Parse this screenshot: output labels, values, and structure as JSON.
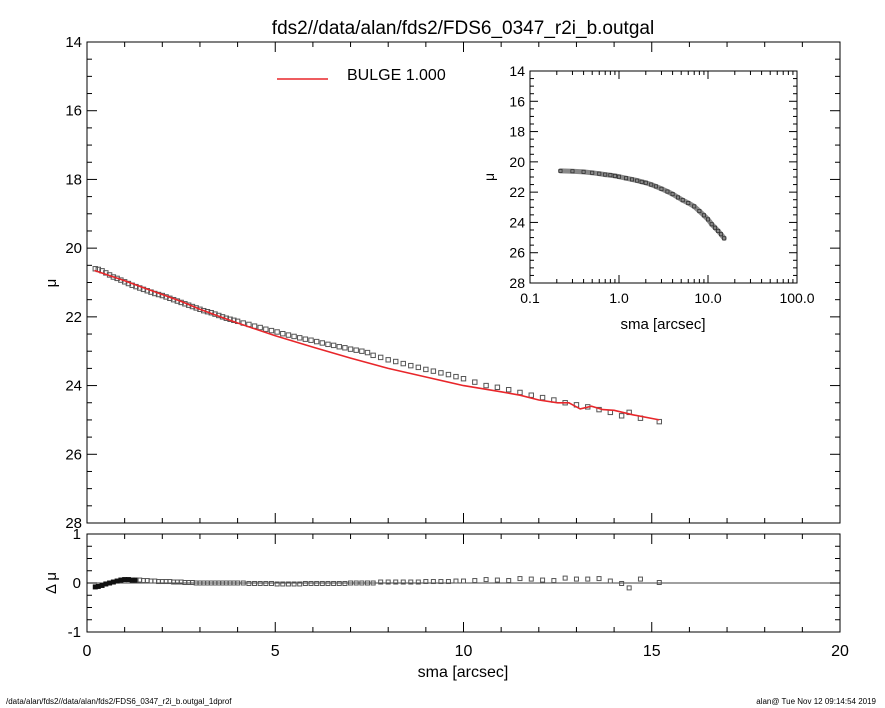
{
  "title": "fds2//data/alan/fds2/FDS6_0347_r2i_b.outgal",
  "footer": {
    "left": "/data/alan/fds2//data/alan/fds2/FDS6_0347_r2i_b.outgal_1dprof",
    "right": "alan@  Tue Nov 12 09:14:54 2019"
  },
  "colors": {
    "model": "#e8262a",
    "data": "#555555",
    "axes": "#000000"
  },
  "chart_data": [
    {
      "id": "main",
      "type": "scatter",
      "xlabel": "",
      "ylabel": "μ",
      "xlim": [
        0,
        20
      ],
      "ylim": [
        28,
        14
      ],
      "y_inverted": true,
      "xticks": [],
      "yticks": [
        "14",
        "16",
        "18",
        "20",
        "22",
        "24",
        "26",
        "28"
      ],
      "legend": {
        "label": "BULGE  1.000",
        "placement": "top"
      },
      "series": [
        {
          "name": "BULGE  1.000",
          "kind": "line",
          "x": [
            0.2,
            0.6,
            1.0,
            1.5,
            2.0,
            2.5,
            3.0,
            3.5,
            4.0,
            5.0,
            6.0,
            7.0,
            8.0,
            9.0,
            10.0,
            11.0,
            11.5,
            12.0,
            12.5,
            12.8,
            13.1,
            13.4,
            13.7,
            14.0,
            14.5,
            15.2
          ],
          "y": [
            20.65,
            20.8,
            20.95,
            21.15,
            21.35,
            21.55,
            21.78,
            21.98,
            22.18,
            22.55,
            22.88,
            23.2,
            23.5,
            23.75,
            24.0,
            24.18,
            24.28,
            24.42,
            24.5,
            24.5,
            24.68,
            24.6,
            24.7,
            24.72,
            24.85,
            25.0
          ]
        },
        {
          "name": "",
          "kind": "points",
          "x": [
            0.22,
            0.3,
            0.4,
            0.5,
            0.6,
            0.7,
            0.8,
            0.9,
            1.0,
            1.1,
            1.2,
            1.3,
            1.4,
            1.5,
            1.6,
            1.7,
            1.8,
            1.9,
            2.0,
            2.1,
            2.2,
            2.3,
            2.4,
            2.5,
            2.6,
            2.7,
            2.8,
            2.9,
            3.0,
            3.1,
            3.2,
            3.3,
            3.4,
            3.5,
            3.6,
            3.7,
            3.8,
            3.9,
            4.0,
            4.15,
            4.3,
            4.45,
            4.6,
            4.75,
            4.9,
            5.05,
            5.2,
            5.35,
            5.5,
            5.65,
            5.8,
            5.95,
            6.1,
            6.25,
            6.4,
            6.55,
            6.7,
            6.85,
            7.0,
            7.15,
            7.3,
            7.45,
            7.6,
            7.8,
            8.0,
            8.2,
            8.4,
            8.6,
            8.8,
            9.0,
            9.2,
            9.4,
            9.6,
            9.8,
            10.0,
            10.3,
            10.6,
            10.9,
            11.2,
            11.5,
            11.8,
            12.1,
            12.4,
            12.7,
            13.0,
            13.3,
            13.6,
            13.9,
            14.2,
            14.4,
            14.7,
            15.2
          ],
          "y": [
            20.6,
            20.62,
            20.66,
            20.72,
            20.78,
            20.84,
            20.88,
            20.93,
            20.98,
            21.03,
            21.08,
            21.12,
            21.16,
            21.2,
            21.24,
            21.28,
            21.32,
            21.35,
            21.38,
            21.42,
            21.46,
            21.5,
            21.54,
            21.58,
            21.62,
            21.66,
            21.7,
            21.74,
            21.78,
            21.82,
            21.85,
            21.88,
            21.92,
            21.96,
            22.0,
            22.04,
            22.07,
            22.1,
            22.13,
            22.18,
            22.22,
            22.27,
            22.31,
            22.36,
            22.4,
            22.44,
            22.49,
            22.53,
            22.57,
            22.61,
            22.65,
            22.68,
            22.72,
            22.76,
            22.8,
            22.83,
            22.87,
            22.9,
            22.94,
            22.97,
            23.0,
            23.04,
            23.12,
            23.18,
            23.25,
            23.3,
            23.36,
            23.42,
            23.47,
            23.53,
            23.58,
            23.63,
            23.68,
            23.74,
            23.8,
            23.9,
            24.0,
            24.05,
            24.12,
            24.2,
            24.28,
            24.35,
            24.42,
            24.5,
            24.56,
            24.62,
            24.7,
            24.78,
            24.88,
            24.78,
            24.95,
            25.05
          ]
        }
      ]
    },
    {
      "id": "residual",
      "type": "scatter",
      "xlabel": "sma [arcsec]",
      "ylabel": "Δ μ",
      "xlim": [
        0,
        20
      ],
      "ylim": [
        -1,
        1
      ],
      "xticks": [
        "0",
        "5",
        "10",
        "15",
        "20"
      ],
      "yticks": [
        "-1",
        "0",
        "1"
      ],
      "series": [
        {
          "name": "",
          "kind": "points",
          "x": [
            0.22,
            0.3,
            0.4,
            0.5,
            0.6,
            0.7,
            0.8,
            0.9,
            1.0,
            1.1,
            1.2,
            1.3,
            1.4,
            1.5,
            1.6,
            1.7,
            1.8,
            1.9,
            2.0,
            2.1,
            2.2,
            2.3,
            2.4,
            2.5,
            2.6,
            2.7,
            2.8,
            2.9,
            3.0,
            3.1,
            3.2,
            3.3,
            3.4,
            3.5,
            3.6,
            3.7,
            3.8,
            3.9,
            4.0,
            4.15,
            4.3,
            4.45,
            4.6,
            4.75,
            4.9,
            5.05,
            5.2,
            5.35,
            5.5,
            5.65,
            5.8,
            5.95,
            6.1,
            6.25,
            6.4,
            6.55,
            6.7,
            6.85,
            7.0,
            7.15,
            7.3,
            7.45,
            7.6,
            7.8,
            8.0,
            8.2,
            8.4,
            8.6,
            8.8,
            9.0,
            9.2,
            9.4,
            9.6,
            9.8,
            10.0,
            10.3,
            10.6,
            10.9,
            11.2,
            11.5,
            11.8,
            12.1,
            12.4,
            12.7,
            13.0,
            13.3,
            13.6,
            13.9,
            14.2,
            14.4,
            14.7,
            15.2
          ],
          "y": [
            -0.08,
            -0.07,
            -0.05,
            -0.02,
            0.0,
            0.02,
            0.04,
            0.06,
            0.07,
            0.07,
            0.06,
            0.06,
            0.06,
            0.05,
            0.05,
            0.04,
            0.04,
            0.03,
            0.03,
            0.03,
            0.03,
            0.02,
            0.02,
            0.02,
            0.01,
            0.01,
            0.01,
            0.0,
            0.0,
            0.0,
            0.0,
            0.0,
            0.0,
            0.0,
            0.0,
            0.0,
            0.0,
            0.0,
            0.0,
            0.0,
            -0.01,
            -0.01,
            -0.01,
            -0.01,
            -0.01,
            -0.02,
            -0.02,
            -0.02,
            -0.02,
            -0.02,
            -0.01,
            -0.01,
            -0.01,
            -0.01,
            -0.01,
            -0.01,
            -0.01,
            -0.01,
            0.0,
            0.0,
            0.0,
            0.0,
            0.0,
            0.02,
            0.02,
            0.02,
            0.02,
            0.02,
            0.02,
            0.03,
            0.03,
            0.03,
            0.03,
            0.04,
            0.04,
            0.05,
            0.07,
            0.06,
            0.05,
            0.09,
            0.08,
            0.06,
            0.05,
            0.1,
            0.08,
            0.08,
            0.09,
            0.04,
            -0.01,
            -0.1,
            0.08,
            0.01
          ]
        }
      ]
    },
    {
      "id": "inset",
      "type": "scatter",
      "xlabel": "sma [arcsec]",
      "ylabel": "μ",
      "xscale": "log",
      "xlim": [
        0.1,
        100.0
      ],
      "ylim": [
        28,
        14
      ],
      "y_inverted": true,
      "xticks": [
        "0.1",
        "1.0",
        "10.0",
        "100.0"
      ],
      "yticks": [
        "14",
        "16",
        "18",
        "20",
        "22",
        "24",
        "26",
        "28"
      ],
      "series": [
        {
          "name": "",
          "kind": "points",
          "x": [
            0.22,
            0.3,
            0.4,
            0.5,
            0.6,
            0.7,
            0.8,
            0.9,
            1.0,
            1.2,
            1.4,
            1.6,
            1.8,
            2.0,
            2.3,
            2.6,
            3.0,
            3.5,
            4.0,
            4.6,
            5.2,
            6.0,
            7.0,
            8.0,
            9.0,
            10.0,
            11.0,
            12.0,
            13.0,
            14.0,
            15.2
          ],
          "y": [
            20.6,
            20.62,
            20.66,
            20.72,
            20.78,
            20.84,
            20.88,
            20.93,
            20.98,
            21.08,
            21.16,
            21.24,
            21.32,
            21.38,
            21.5,
            21.62,
            21.78,
            21.96,
            22.13,
            22.35,
            22.53,
            22.72,
            22.94,
            23.25,
            23.53,
            23.8,
            24.12,
            24.35,
            24.56,
            24.78,
            25.05
          ]
        }
      ]
    }
  ]
}
